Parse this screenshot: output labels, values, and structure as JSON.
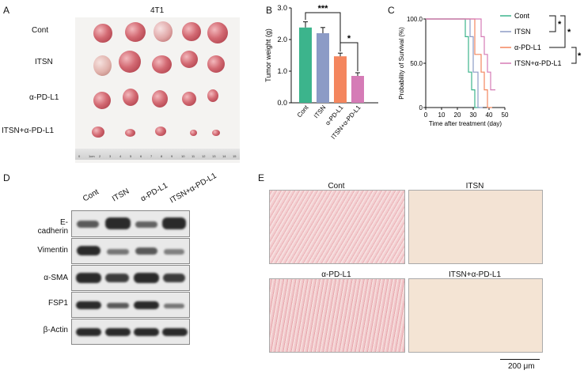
{
  "panels": {
    "A": "A",
    "B": "B",
    "C": "C",
    "D": "D",
    "E": "E"
  },
  "panelA": {
    "title": "4T1",
    "groups": [
      "Cont",
      "ITSN",
      "α-PD-L1",
      "ITSN+α-PD-L1"
    ],
    "ruler_ticks": [
      "0",
      "1cm",
      "2",
      "3",
      "4",
      "5",
      "6",
      "7",
      "8",
      "9",
      "10",
      "11",
      "12",
      "13",
      "14",
      "15"
    ]
  },
  "chart_data": [
    {
      "type": "bar",
      "categories": [
        "Cont",
        "ITSN",
        "α-PD-L1",
        "ITSN+α-PD-L1"
      ],
      "values": [
        2.38,
        2.2,
        1.47,
        0.85
      ],
      "errors": [
        0.18,
        0.18,
        0.1,
        0.1
      ],
      "colors": [
        "#3cb48c",
        "#8c9bc6",
        "#f4865e",
        "#d57bb6"
      ],
      "ylabel": "Tumor weight (g)",
      "ylim": [
        0,
        3.0
      ],
      "yticks": [
        "0.0",
        "1.0",
        "2.0",
        "3.0"
      ],
      "significance": [
        {
          "label": "***"
        },
        {
          "label": "*"
        }
      ]
    },
    {
      "type": "line",
      "xlabel": "Time after treatment (day)",
      "ylabel": "Probability of Survival (%)",
      "xlim": [
        0,
        50
      ],
      "ylim": [
        0,
        100
      ],
      "xticks": [
        "0",
        "10",
        "20",
        "30",
        "40",
        "50"
      ],
      "yticks": [
        "0",
        "50.0",
        "100.0"
      ],
      "series": [
        {
          "name": "Cont",
          "color": "#3cb48c",
          "steps": [
            [
              0,
              100
            ],
            [
              25,
              100
            ],
            [
              25,
              80
            ],
            [
              27,
              80
            ],
            [
              27,
              40
            ],
            [
              29,
              40
            ],
            [
              29,
              20
            ],
            [
              31,
              20
            ],
            [
              31,
              0
            ],
            [
              34,
              0
            ]
          ]
        },
        {
          "name": "ITSN",
          "color": "#8c9bc6",
          "steps": [
            [
              0,
              100
            ],
            [
              28,
              100
            ],
            [
              28,
              80
            ],
            [
              30,
              80
            ],
            [
              30,
              40
            ],
            [
              33,
              40
            ],
            [
              33,
              0
            ],
            [
              36,
              0
            ]
          ]
        },
        {
          "name": "α-PD-L1",
          "color": "#f4865e",
          "steps": [
            [
              0,
              100
            ],
            [
              31,
              100
            ],
            [
              31,
              60
            ],
            [
              35,
              60
            ],
            [
              35,
              40
            ],
            [
              37,
              40
            ],
            [
              37,
              20
            ],
            [
              39,
              20
            ],
            [
              39,
              0
            ],
            [
              42,
              0
            ]
          ]
        },
        {
          "name": "ITSN+α-PD-L1",
          "color": "#d57bb6",
          "steps": [
            [
              0,
              100
            ],
            [
              35,
              100
            ],
            [
              35,
              80
            ],
            [
              37,
              80
            ],
            [
              37,
              60
            ],
            [
              39,
              60
            ],
            [
              39,
              40
            ],
            [
              41,
              40
            ],
            [
              41,
              20
            ],
            [
              44,
              20
            ]
          ]
        }
      ],
      "significance": [
        "*",
        "*",
        "*"
      ]
    }
  ],
  "panelD": {
    "columns": [
      "Cont",
      "ITSN",
      "α-PD-L1",
      "ITSN+α-PD-L1"
    ],
    "rows": [
      "E-cadherin",
      "Vimentin",
      "α-SMA",
      "FSP1",
      "β-Actin"
    ]
  },
  "panelE": {
    "labels": [
      "Cont",
      "ITSN",
      "α-PD-L1",
      "ITSN+α-PD-L1"
    ],
    "scalebar": "200 μm"
  }
}
